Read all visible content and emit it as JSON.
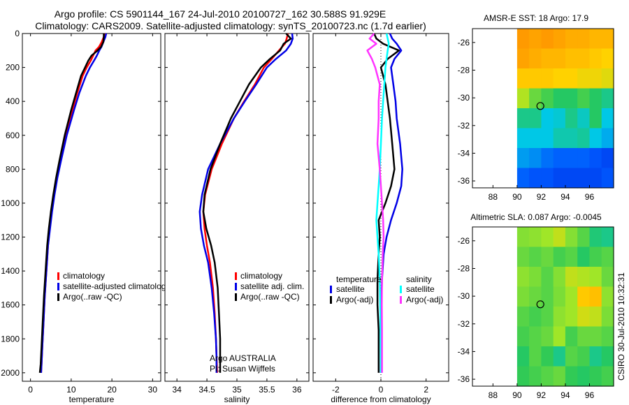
{
  "titles": {
    "line1": "Argo profile: CS 5901144_167 24-Jul-2010 20100727_162 30.588S 91.929E",
    "line2": "Climatology: CARS2009. Satellite-adjusted climatology: synTS_20100723.nc (1.7d earlier)"
  },
  "side_label": "CSIRO 30-Jul-2010 10:32:31",
  "colors": {
    "red": "#ff0000",
    "blue": "#0000e6",
    "black": "#000000",
    "cyan": "#00ffff",
    "magenta": "#ff33ff"
  },
  "chart_data": [
    {
      "type": "line",
      "name": "temperature-profile",
      "xlabel": "temperature",
      "xlim": [
        -2,
        32
      ],
      "ylim": [
        0,
        2050
      ],
      "y_reversed": true,
      "xticks": [
        0,
        10,
        20,
        30
      ],
      "yticks": [
        0,
        200,
        400,
        600,
        800,
        1000,
        1200,
        1400,
        1600,
        1800,
        2000
      ],
      "legend": {
        "position": "lower-center",
        "entries": [
          "climatology",
          "satellite-adjusted climatology",
          "Argo(..raw -QC)"
        ]
      },
      "series": [
        {
          "name": "climatology",
          "color": "red",
          "x": [
            18.2,
            18.0,
            17.5,
            16.8,
            16.0,
            15.4,
            14.8,
            13.8,
            12.8,
            11.5,
            10.3,
            8.6,
            7.3,
            6.5,
            5.8,
            5.2,
            4.7,
            4.3,
            3.9,
            3.5,
            3.2,
            2.9,
            2.7,
            2.6
          ],
          "y": [
            0,
            20,
            50,
            80,
            100,
            130,
            160,
            200,
            250,
            350,
            450,
            600,
            750,
            850,
            950,
            1050,
            1150,
            1250,
            1400,
            1550,
            1700,
            1850,
            1950,
            2000
          ]
        },
        {
          "name": "satellite-adjusted climatology",
          "color": "blue",
          "x": [
            18.6,
            18.4,
            17.9,
            17.4,
            16.9,
            16.3,
            15.6,
            14.6,
            13.6,
            12.0,
            10.7,
            8.9,
            7.5,
            6.6,
            5.9,
            5.3,
            4.8,
            4.3,
            3.9,
            3.5,
            3.2,
            2.9,
            2.7,
            2.6
          ],
          "y": [
            0,
            20,
            50,
            80,
            100,
            130,
            160,
            200,
            250,
            350,
            450,
            600,
            750,
            850,
            950,
            1050,
            1150,
            1250,
            1400,
            1550,
            1700,
            1850,
            1950,
            2000
          ]
        },
        {
          "name": "Argo(..raw -QC)",
          "color": "black",
          "x": [
            18.0,
            18.0,
            17.9,
            17.3,
            16.5,
            15.0,
            14.2,
            13.4,
            12.4,
            11.2,
            10.0,
            8.4,
            7.1,
            6.3,
            5.6,
            5.0,
            4.5,
            4.1,
            3.7,
            3.3,
            3.0,
            2.7,
            2.5,
            2.3
          ],
          "y": [
            0,
            20,
            50,
            80,
            100,
            130,
            160,
            200,
            250,
            350,
            450,
            600,
            750,
            850,
            950,
            1050,
            1150,
            1250,
            1400,
            1550,
            1700,
            1850,
            1950,
            2000
          ]
        }
      ]
    },
    {
      "type": "line",
      "name": "salinity-profile",
      "xlabel": "salinity",
      "xlim": [
        33.8,
        36.2
      ],
      "ylim": [
        0,
        2050
      ],
      "y_reversed": true,
      "xticks": [
        34,
        34.5,
        35,
        35.5,
        36
      ],
      "xtick_labels": [
        "34",
        "34.5",
        "35",
        "35.5",
        "36"
      ],
      "legend": {
        "position": "lower-right",
        "entries": [
          "climatology",
          "satellite adj. clim.",
          "Argo(..raw -QC)"
        ]
      },
      "annotations": [
        "Argo AUSTRALIA",
        "PI: Susan Wijffels"
      ],
      "series": [
        {
          "name": "climatology",
          "color": "red",
          "x": [
            35.85,
            35.83,
            35.8,
            35.7,
            35.58,
            35.45,
            35.3,
            35.12,
            34.95,
            34.75,
            34.58,
            34.47,
            34.44,
            34.46,
            34.5,
            34.55,
            34.6,
            34.63,
            34.65,
            34.66,
            34.67
          ],
          "y": [
            0,
            30,
            60,
            100,
            150,
            200,
            300,
            400,
            500,
            650,
            800,
            950,
            1050,
            1150,
            1250,
            1350,
            1500,
            1650,
            1800,
            1900,
            2000
          ]
        },
        {
          "name": "satellite adj. clim.",
          "color": "blue",
          "x": [
            35.92,
            35.93,
            35.9,
            35.82,
            35.65,
            35.5,
            35.32,
            35.13,
            34.95,
            34.72,
            34.52,
            34.42,
            34.38,
            34.4,
            34.45,
            34.52,
            34.58,
            34.62,
            34.65,
            34.66,
            34.66
          ],
          "y": [
            0,
            30,
            60,
            100,
            150,
            200,
            300,
            400,
            500,
            650,
            800,
            950,
            1050,
            1150,
            1250,
            1350,
            1500,
            1650,
            1800,
            1900,
            2000
          ]
        },
        {
          "name": "Argo(..raw -QC)",
          "color": "black",
          "x": [
            35.82,
            35.9,
            35.78,
            35.72,
            35.55,
            35.4,
            35.2,
            35.05,
            34.9,
            34.72,
            34.56,
            34.46,
            34.44,
            34.49,
            34.57,
            34.63,
            34.68,
            34.7,
            34.72,
            34.72,
            34.72
          ],
          "y": [
            0,
            30,
            60,
            100,
            150,
            200,
            300,
            400,
            500,
            650,
            800,
            950,
            1050,
            1150,
            1250,
            1350,
            1500,
            1650,
            1800,
            1900,
            2000
          ]
        }
      ]
    },
    {
      "type": "line",
      "name": "difference-profile",
      "xlabel": "difference from climatology",
      "xlim": [
        -3,
        3
      ],
      "ylim": [
        0,
        2050
      ],
      "y_reversed": true,
      "xticks": [
        -2,
        0,
        2
      ],
      "legend": {
        "position": "lower-center",
        "groups": [
          {
            "heading": "temperature",
            "entries": [
              "satellite",
              "Argo(-adj)"
            ]
          },
          {
            "heading": "salinity",
            "entries": [
              "satellite",
              "Argo(-adj)"
            ]
          }
        ]
      },
      "series": [
        {
          "name": "temperature satellite",
          "color": "blue",
          "x": [
            0.4,
            0.5,
            0.7,
            0.9,
            0.6,
            0.45,
            0.55,
            0.65,
            0.7,
            0.85,
            0.95,
            0.9,
            0.7,
            0.45,
            0.25,
            0.12,
            0.05,
            0.02,
            0.01,
            0.0,
            0.0
          ],
          "y": [
            0,
            30,
            60,
            100,
            150,
            200,
            300,
            400,
            500,
            650,
            800,
            900,
            1000,
            1100,
            1200,
            1300,
            1450,
            1600,
            1750,
            1900,
            2000
          ]
        },
        {
          "name": "temperature Argo(-adj)",
          "color": "black",
          "x": [
            -0.3,
            -0.2,
            0.1,
            0.8,
            0.3,
            0.0,
            0.2,
            0.3,
            0.4,
            0.5,
            0.6,
            0.45,
            0.2,
            -0.1,
            -0.05,
            -0.1,
            -0.15,
            -0.15,
            -0.1,
            -0.1,
            -0.1
          ],
          "y": [
            0,
            30,
            60,
            100,
            150,
            200,
            300,
            400,
            500,
            650,
            800,
            900,
            1000,
            1100,
            1200,
            1300,
            1450,
            1600,
            1750,
            1900,
            2000
          ]
        },
        {
          "name": "salinity satellite",
          "color": "cyan",
          "x": [
            0.25,
            0.3,
            0.35,
            0.3,
            0.25,
            0.2,
            0.15,
            0.1,
            0.05,
            0.0,
            -0.05,
            -0.1,
            -0.15,
            -0.2,
            -0.15,
            -0.1,
            -0.05,
            -0.03,
            -0.02,
            -0.01,
            0.0
          ],
          "y": [
            0,
            30,
            60,
            100,
            150,
            200,
            300,
            400,
            500,
            650,
            800,
            900,
            1000,
            1100,
            1200,
            1300,
            1450,
            1600,
            1750,
            1900,
            2000
          ]
        },
        {
          "name": "salinity Argo(-adj)",
          "color": "magenta",
          "x": [
            -0.3,
            -0.5,
            -0.2,
            -0.6,
            -0.4,
            -0.25,
            -0.05,
            -0.1,
            -0.1,
            -0.15,
            -0.05,
            0.0,
            0.05,
            0.1,
            0.12,
            0.08,
            0.05,
            0.04,
            0.05,
            0.05,
            0.05
          ],
          "y": [
            0,
            30,
            60,
            100,
            150,
            200,
            300,
            400,
            500,
            650,
            800,
            900,
            1000,
            1100,
            1200,
            1300,
            1450,
            1600,
            1750,
            1900,
            2000
          ]
        }
      ]
    },
    {
      "type": "heatmap",
      "name": "sst-map",
      "title": "AMSR-E SST: 18  Argo: 17.9",
      "xlim": [
        86.3,
        98
      ],
      "ylim": [
        -36.5,
        -25
      ],
      "xticks": [
        88,
        90,
        92,
        94,
        96
      ],
      "yticks": [
        -26,
        -28,
        -30,
        -32,
        -34,
        -36
      ],
      "data_lon_start": 90,
      "marker": {
        "lon": 91.929,
        "lat": -30.588
      },
      "grid": [
        [
          0.82,
          0.8,
          0.82,
          0.8,
          0.78,
          0.78,
          0.76,
          0.76
        ],
        [
          0.8,
          0.78,
          0.76,
          0.76,
          0.74,
          0.74,
          0.72,
          0.7
        ],
        [
          0.72,
          0.72,
          0.72,
          0.7,
          0.7,
          0.68,
          0.68,
          0.66
        ],
        [
          0.6,
          0.52,
          0.48,
          0.44,
          0.44,
          0.48,
          0.44,
          0.4
        ],
        [
          0.4,
          0.4,
          0.3,
          0.32,
          0.4,
          0.34,
          0.44,
          0.3
        ],
        [
          0.3,
          0.3,
          0.3,
          0.36,
          0.36,
          0.38,
          0.3,
          0.26
        ],
        [
          0.24,
          0.22,
          0.18,
          0.16,
          0.16,
          0.16,
          0.14,
          0.12
        ],
        [
          0.16,
          0.14,
          0.14,
          0.12,
          0.12,
          0.12,
          0.12,
          0.14
        ]
      ]
    },
    {
      "type": "heatmap",
      "name": "sla-map",
      "title": "Altimetric SLA: 0.087  Argo: -0.0045",
      "xlim": [
        86.3,
        98
      ],
      "ylim": [
        -36.5,
        -25
      ],
      "xticks": [
        88,
        90,
        92,
        94,
        96
      ],
      "yticks": [
        -26,
        -28,
        -30,
        -32,
        -34,
        -36
      ],
      "data_lon_start": 90,
      "marker": {
        "lon": 91.929,
        "lat": -30.588
      },
      "grid": [
        [
          0.55,
          0.56,
          0.58,
          0.62,
          0.55,
          0.5,
          0.42,
          0.4
        ],
        [
          0.52,
          0.5,
          0.52,
          0.48,
          0.5,
          0.44,
          0.48,
          0.5
        ],
        [
          0.56,
          0.54,
          0.5,
          0.55,
          0.62,
          0.6,
          0.58,
          0.52
        ],
        [
          0.54,
          0.52,
          0.5,
          0.54,
          0.58,
          0.72,
          0.74,
          0.56
        ],
        [
          0.5,
          0.48,
          0.5,
          0.56,
          0.58,
          0.64,
          0.62,
          0.54
        ],
        [
          0.48,
          0.5,
          0.52,
          0.58,
          0.48,
          0.52,
          0.52,
          0.5
        ],
        [
          0.44,
          0.5,
          0.46,
          0.4,
          0.5,
          0.48,
          0.4,
          0.44
        ],
        [
          0.46,
          0.48,
          0.5,
          0.52,
          0.46,
          0.44,
          0.46,
          0.48
        ]
      ]
    }
  ]
}
